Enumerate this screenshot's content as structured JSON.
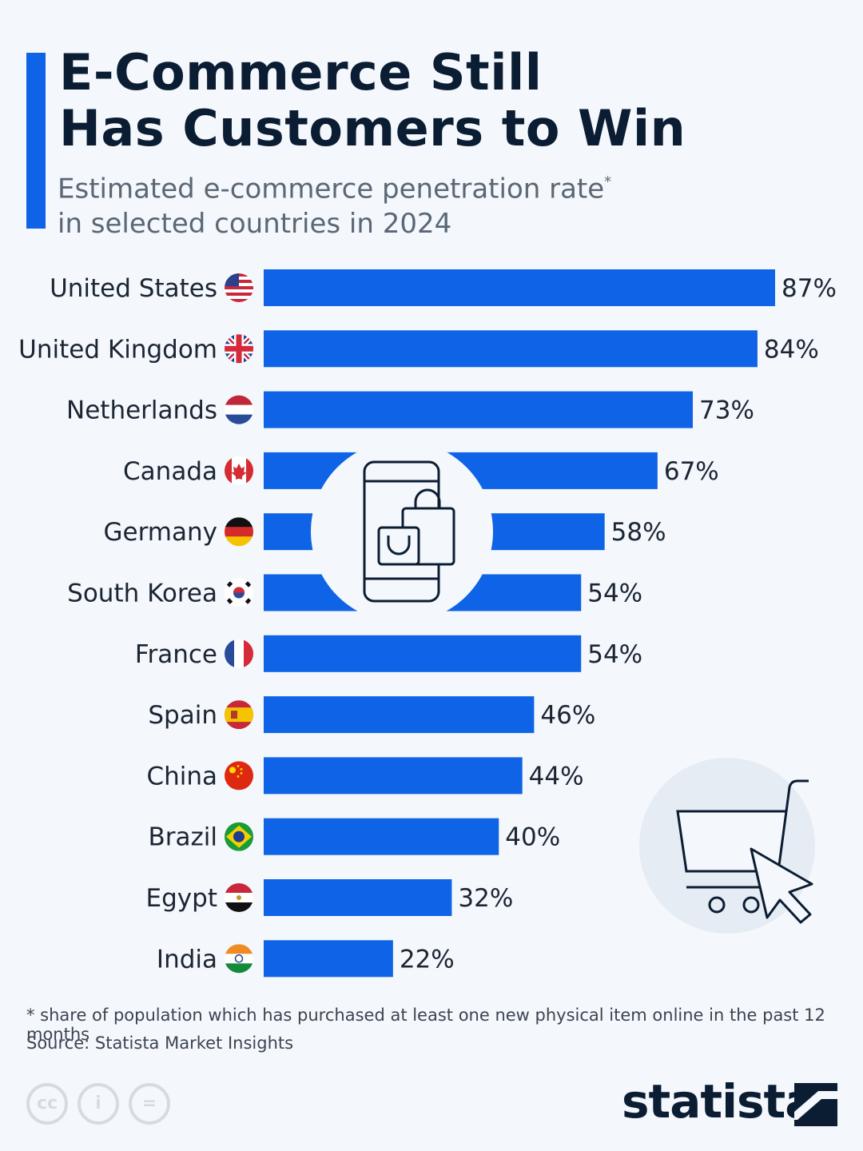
{
  "header": {
    "title": "E-Commerce Still\nHas Customers to Win",
    "subtitle": "Estimated e-commerce penetration rate",
    "subtitle_mark": "*",
    "subtitle_line2": "in selected countries in 2024"
  },
  "chart_data": {
    "type": "bar",
    "orientation": "horizontal",
    "categories": [
      "United States",
      "United Kingdom",
      "Netherlands",
      "Canada",
      "Germany",
      "South Korea",
      "France",
      "Spain",
      "China",
      "Brazil",
      "Egypt",
      "India"
    ],
    "values": [
      87,
      84,
      73,
      67,
      58,
      54,
      54,
      46,
      44,
      40,
      32,
      22
    ],
    "value_labels": [
      "87%",
      "84%",
      "73%",
      "67%",
      "58%",
      "54%",
      "54%",
      "46%",
      "44%",
      "40%",
      "32%",
      "22%"
    ],
    "xlim": [
      0,
      100
    ],
    "grid": false,
    "bar_color": "#0f63e6"
  },
  "flags": [
    "us-flag",
    "uk-flag",
    "netherlands-flag",
    "canada-flag",
    "germany-flag",
    "south-korea-flag",
    "france-flag",
    "spain-flag",
    "china-flag",
    "brazil-flag",
    "egypt-flag",
    "india-flag"
  ],
  "footer": {
    "footnote": "* share of population which has purchased at least one new physical item online in the past 12 months",
    "source": "Source: Statista Market Insights",
    "brand": "statista",
    "license_icons": [
      "cc-icon",
      "attribution-icon",
      "noderivs-icon"
    ]
  },
  "colors": {
    "accent": "#0f63e6",
    "title": "#0b1d33",
    "subtitle": "#5b6776",
    "background": "#f4f7fb"
  }
}
